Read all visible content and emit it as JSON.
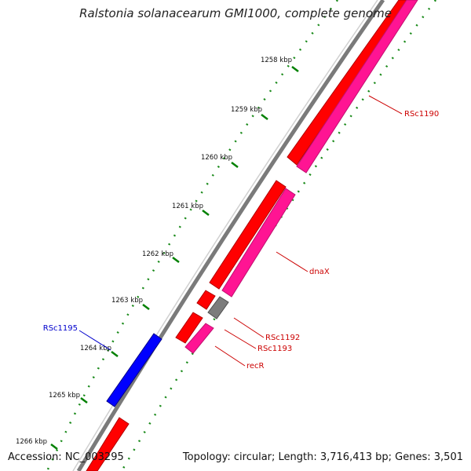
{
  "title": "Ralstonia solanacearum GMI1000, complete genome",
  "footer": {
    "accession": "Accession: NC_003295",
    "summary": "Topology: circular; Length: 3,716,413 bp; Genes: 3,501"
  },
  "colors": {
    "forward_gene": "#ff0000",
    "reverse_gene": "#ff1493",
    "other_gene": "#808080",
    "highlight_gene": "#0000ff",
    "backbone": "#808080",
    "tick": "#008000",
    "label_red": "#cc0000",
    "label_blue": "#0000cc"
  },
  "position_ticks": [
    {
      "label": "1258 kbp"
    },
    {
      "label": "1259 kbp"
    },
    {
      "label": "1260 kbp"
    },
    {
      "label": "1261 kbp"
    },
    {
      "label": "1262 kbp"
    },
    {
      "label": "1263 kbp"
    },
    {
      "label": "1264 kbp"
    },
    {
      "label": "1265 kbp"
    },
    {
      "label": "1266 kbp"
    }
  ],
  "gene_labels": [
    {
      "name": "RSc1190",
      "color": "red"
    },
    {
      "name": "dnaX",
      "color": "red"
    },
    {
      "name": "RSc1192",
      "color": "red"
    },
    {
      "name": "RSc1193",
      "color": "red"
    },
    {
      "name": "recR",
      "color": "red"
    },
    {
      "name": "RSc1195",
      "color": "blue"
    }
  ]
}
